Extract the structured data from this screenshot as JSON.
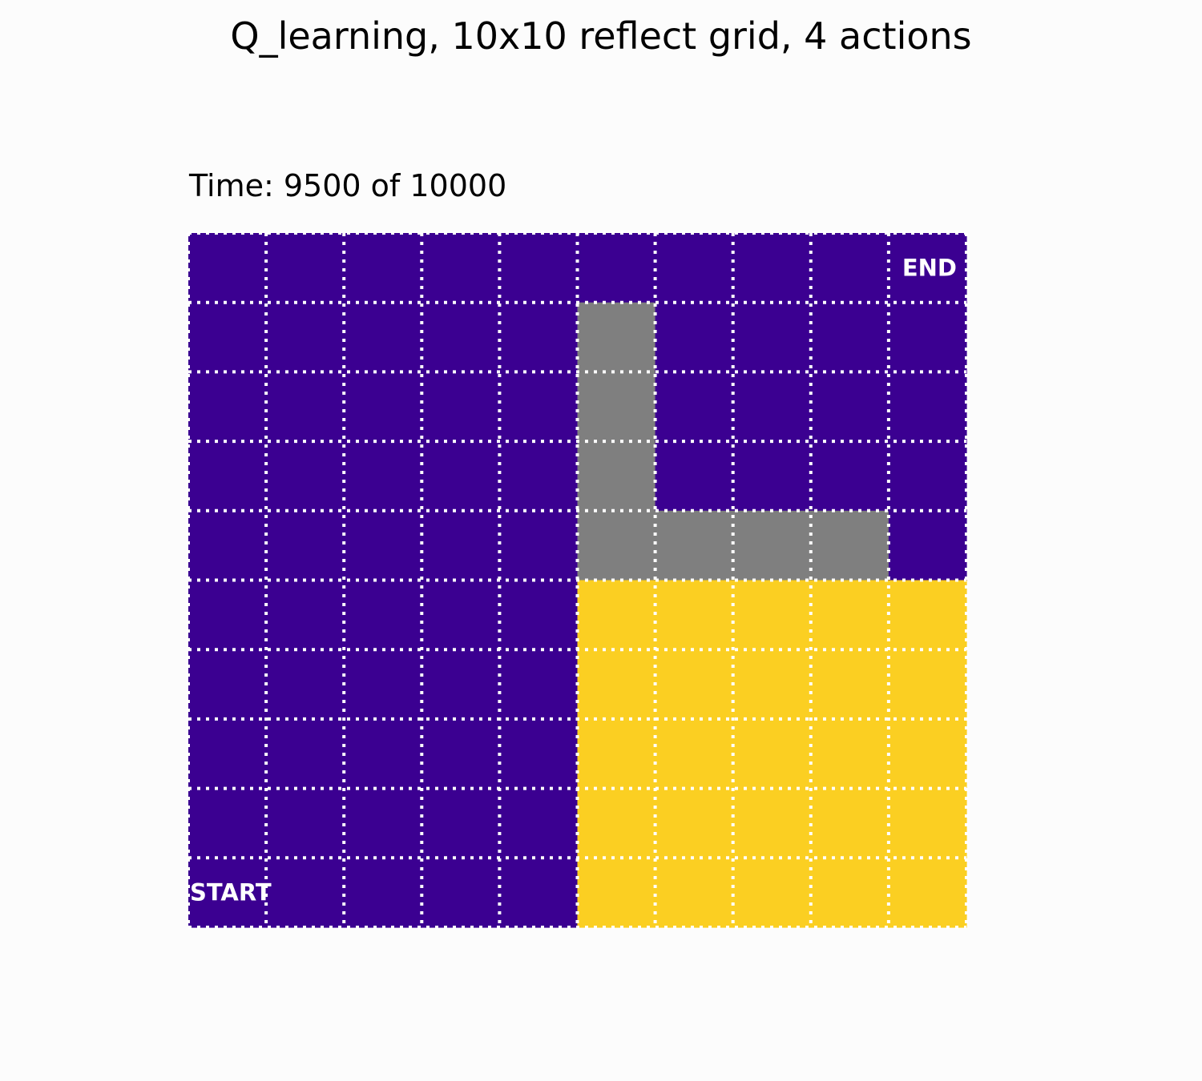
{
  "title": "Q_learning, 10x10 reflect grid, 4 actions",
  "subtitle": "Time: 9500 of 10000",
  "colors": {
    "agent": "#3b0091",
    "obstacle": "#7f7f7f",
    "goal_region": "#fbcf22",
    "gridline": "#ffffff",
    "background": "#fcfcfc"
  },
  "chart_data": {
    "type": "heatmap",
    "rows": 10,
    "cols": 10,
    "row_order": "top-to-bottom",
    "cell_codes": {
      "0": "agent",
      "1": "obstacle",
      "2": "goal_region"
    },
    "cells": [
      [
        0,
        0,
        0,
        0,
        0,
        0,
        0,
        0,
        0,
        0
      ],
      [
        0,
        0,
        0,
        0,
        0,
        1,
        0,
        0,
        0,
        0
      ],
      [
        0,
        0,
        0,
        0,
        0,
        1,
        0,
        0,
        0,
        0
      ],
      [
        0,
        0,
        0,
        0,
        0,
        1,
        0,
        0,
        0,
        0
      ],
      [
        0,
        0,
        0,
        0,
        0,
        1,
        1,
        1,
        1,
        0
      ],
      [
        0,
        0,
        0,
        0,
        0,
        2,
        2,
        2,
        2,
        2
      ],
      [
        0,
        0,
        0,
        0,
        0,
        2,
        2,
        2,
        2,
        2
      ],
      [
        0,
        0,
        0,
        0,
        0,
        2,
        2,
        2,
        2,
        2
      ],
      [
        0,
        0,
        0,
        0,
        0,
        2,
        2,
        2,
        2,
        2
      ],
      [
        0,
        0,
        0,
        0,
        0,
        2,
        2,
        2,
        2,
        2
      ]
    ],
    "grid": true,
    "grid_style": "dotted",
    "annotations": [
      {
        "text": "END",
        "row": 0,
        "col": 9
      },
      {
        "text": "START",
        "row": 9,
        "col": 0
      }
    ]
  }
}
